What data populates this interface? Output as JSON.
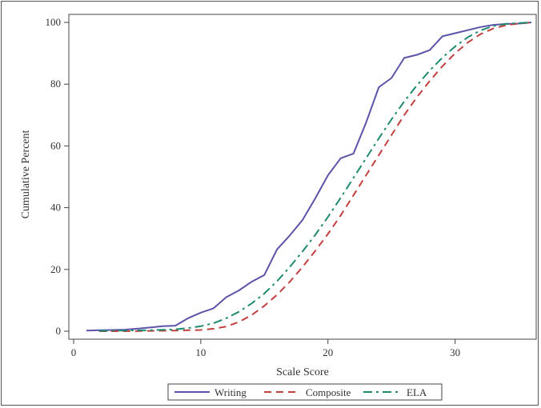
{
  "chart_data": {
    "type": "line",
    "xlabel": "Scale Score",
    "ylabel": "Cumulative Percent",
    "xlim": [
      0,
      36
    ],
    "ylim": [
      0,
      100
    ],
    "xticks": [
      0,
      10,
      20,
      30
    ],
    "yticks": [
      0,
      20,
      40,
      60,
      80,
      100
    ],
    "grid": false,
    "legend_position": "bottom",
    "series": [
      {
        "name": "Writing",
        "color": "#5b54a8",
        "style": "solid",
        "x": [
          1,
          2,
          3,
          4,
          5,
          6,
          7,
          8,
          9,
          10,
          11,
          12,
          13,
          14,
          15,
          16,
          17,
          18,
          19,
          20,
          21,
          22,
          23,
          24,
          25,
          26,
          27,
          28,
          29,
          30,
          31,
          32,
          33,
          34,
          35,
          36
        ],
        "y": [
          0.2,
          0.3,
          0.4,
          0.5,
          0.8,
          1.2,
          1.6,
          1.8,
          4.2,
          6.0,
          7.4,
          11.0,
          13.2,
          16.0,
          18.2,
          26.5,
          31.0,
          36.0,
          43.0,
          50.5,
          56.0,
          57.5,
          67.5,
          79.0,
          82.0,
          88.5,
          89.5,
          91.0,
          95.5,
          96.5,
          97.5,
          98.5,
          99.2,
          99.5,
          99.6,
          100
        ]
      },
      {
        "name": "Composite",
        "color": "#c0413f",
        "style": "dashed",
        "x": [
          2,
          4,
          6,
          8,
          9,
          10,
          11,
          12,
          13,
          14,
          15,
          16,
          17,
          18,
          19,
          20,
          21,
          22,
          23,
          24,
          25,
          26,
          27,
          28,
          29,
          30,
          31,
          32,
          33,
          34,
          35,
          36
        ],
        "y": [
          0,
          0,
          0.1,
          0.2,
          0.3,
          0.4,
          0.8,
          1.5,
          3.0,
          5.2,
          8.2,
          11.8,
          16.0,
          20.8,
          26.0,
          31.5,
          37.5,
          44.0,
          50.5,
          57.0,
          63.5,
          70.0,
          75.8,
          81.0,
          85.8,
          90.0,
          93.5,
          96.2,
          98.0,
          99.1,
          99.6,
          100
        ]
      },
      {
        "name": "ELA",
        "color": "#1f8a70",
        "style": "dashdot",
        "x": [
          2,
          4,
          6,
          8,
          9,
          10,
          11,
          12,
          13,
          14,
          15,
          16,
          17,
          18,
          19,
          20,
          21,
          22,
          23,
          24,
          25,
          26,
          27,
          28,
          29,
          30,
          31,
          32,
          33,
          34,
          35,
          36
        ],
        "y": [
          0.1,
          0.2,
          0.3,
          0.6,
          1.0,
          1.6,
          2.6,
          4.2,
          6.3,
          9.0,
          12.2,
          16.2,
          20.8,
          25.8,
          31.2,
          37.0,
          43.2,
          49.6,
          56.0,
          62.4,
          68.6,
          74.4,
          79.6,
          84.4,
          88.6,
          92.2,
          95.2,
          97.4,
          98.8,
          99.5,
          99.8,
          100
        ]
      }
    ]
  }
}
